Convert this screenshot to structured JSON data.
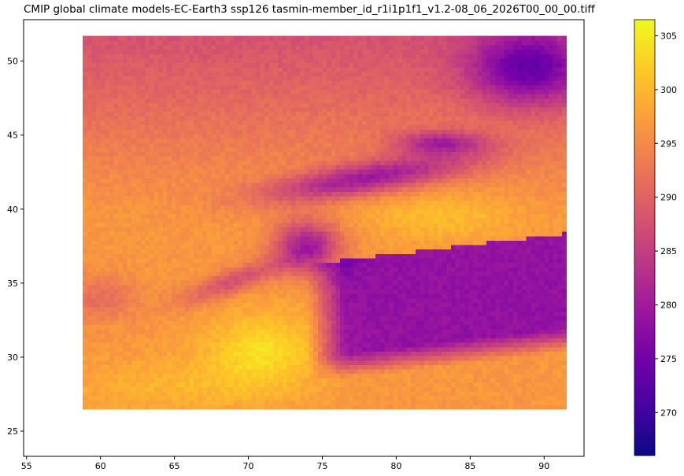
{
  "title": "CMIP global climate models-EC-Earth3 ssp126 tasmin-member_id_r1i1p1f1_v1.2-08_06_2026T00_00_00.tiff",
  "colormap": "plasma",
  "colors": {
    "plasma": [
      "#0d0887",
      "#46039f",
      "#7201a8",
      "#9c179e",
      "#bd3786",
      "#d8576b",
      "#ed7953",
      "#fb9f3a",
      "#fdca26",
      "#f0f921"
    ]
  },
  "chart_data": {
    "type": "heatmap",
    "title": "CMIP global climate models-EC-Earth3 ssp126 tasmin-member_id_r1i1p1f1_v1.2-08_06_2026T00_00_00.tiff",
    "xlim": [
      54.8,
      92.7
    ],
    "ylim": [
      23.3,
      52.8
    ],
    "raster_extent": {
      "lon": [
        58.8,
        91.2
      ],
      "lat": [
        26.5,
        51.6
      ]
    },
    "x_ticks": [
      55,
      60,
      65,
      70,
      75,
      80,
      85,
      90
    ],
    "y_ticks": [
      25,
      30,
      35,
      40,
      45,
      50
    ],
    "colorbar": {
      "vmin": 266,
      "vmax": 306.5,
      "ticks": [
        270,
        275,
        280,
        285,
        290,
        295,
        300,
        305
      ]
    }
  }
}
